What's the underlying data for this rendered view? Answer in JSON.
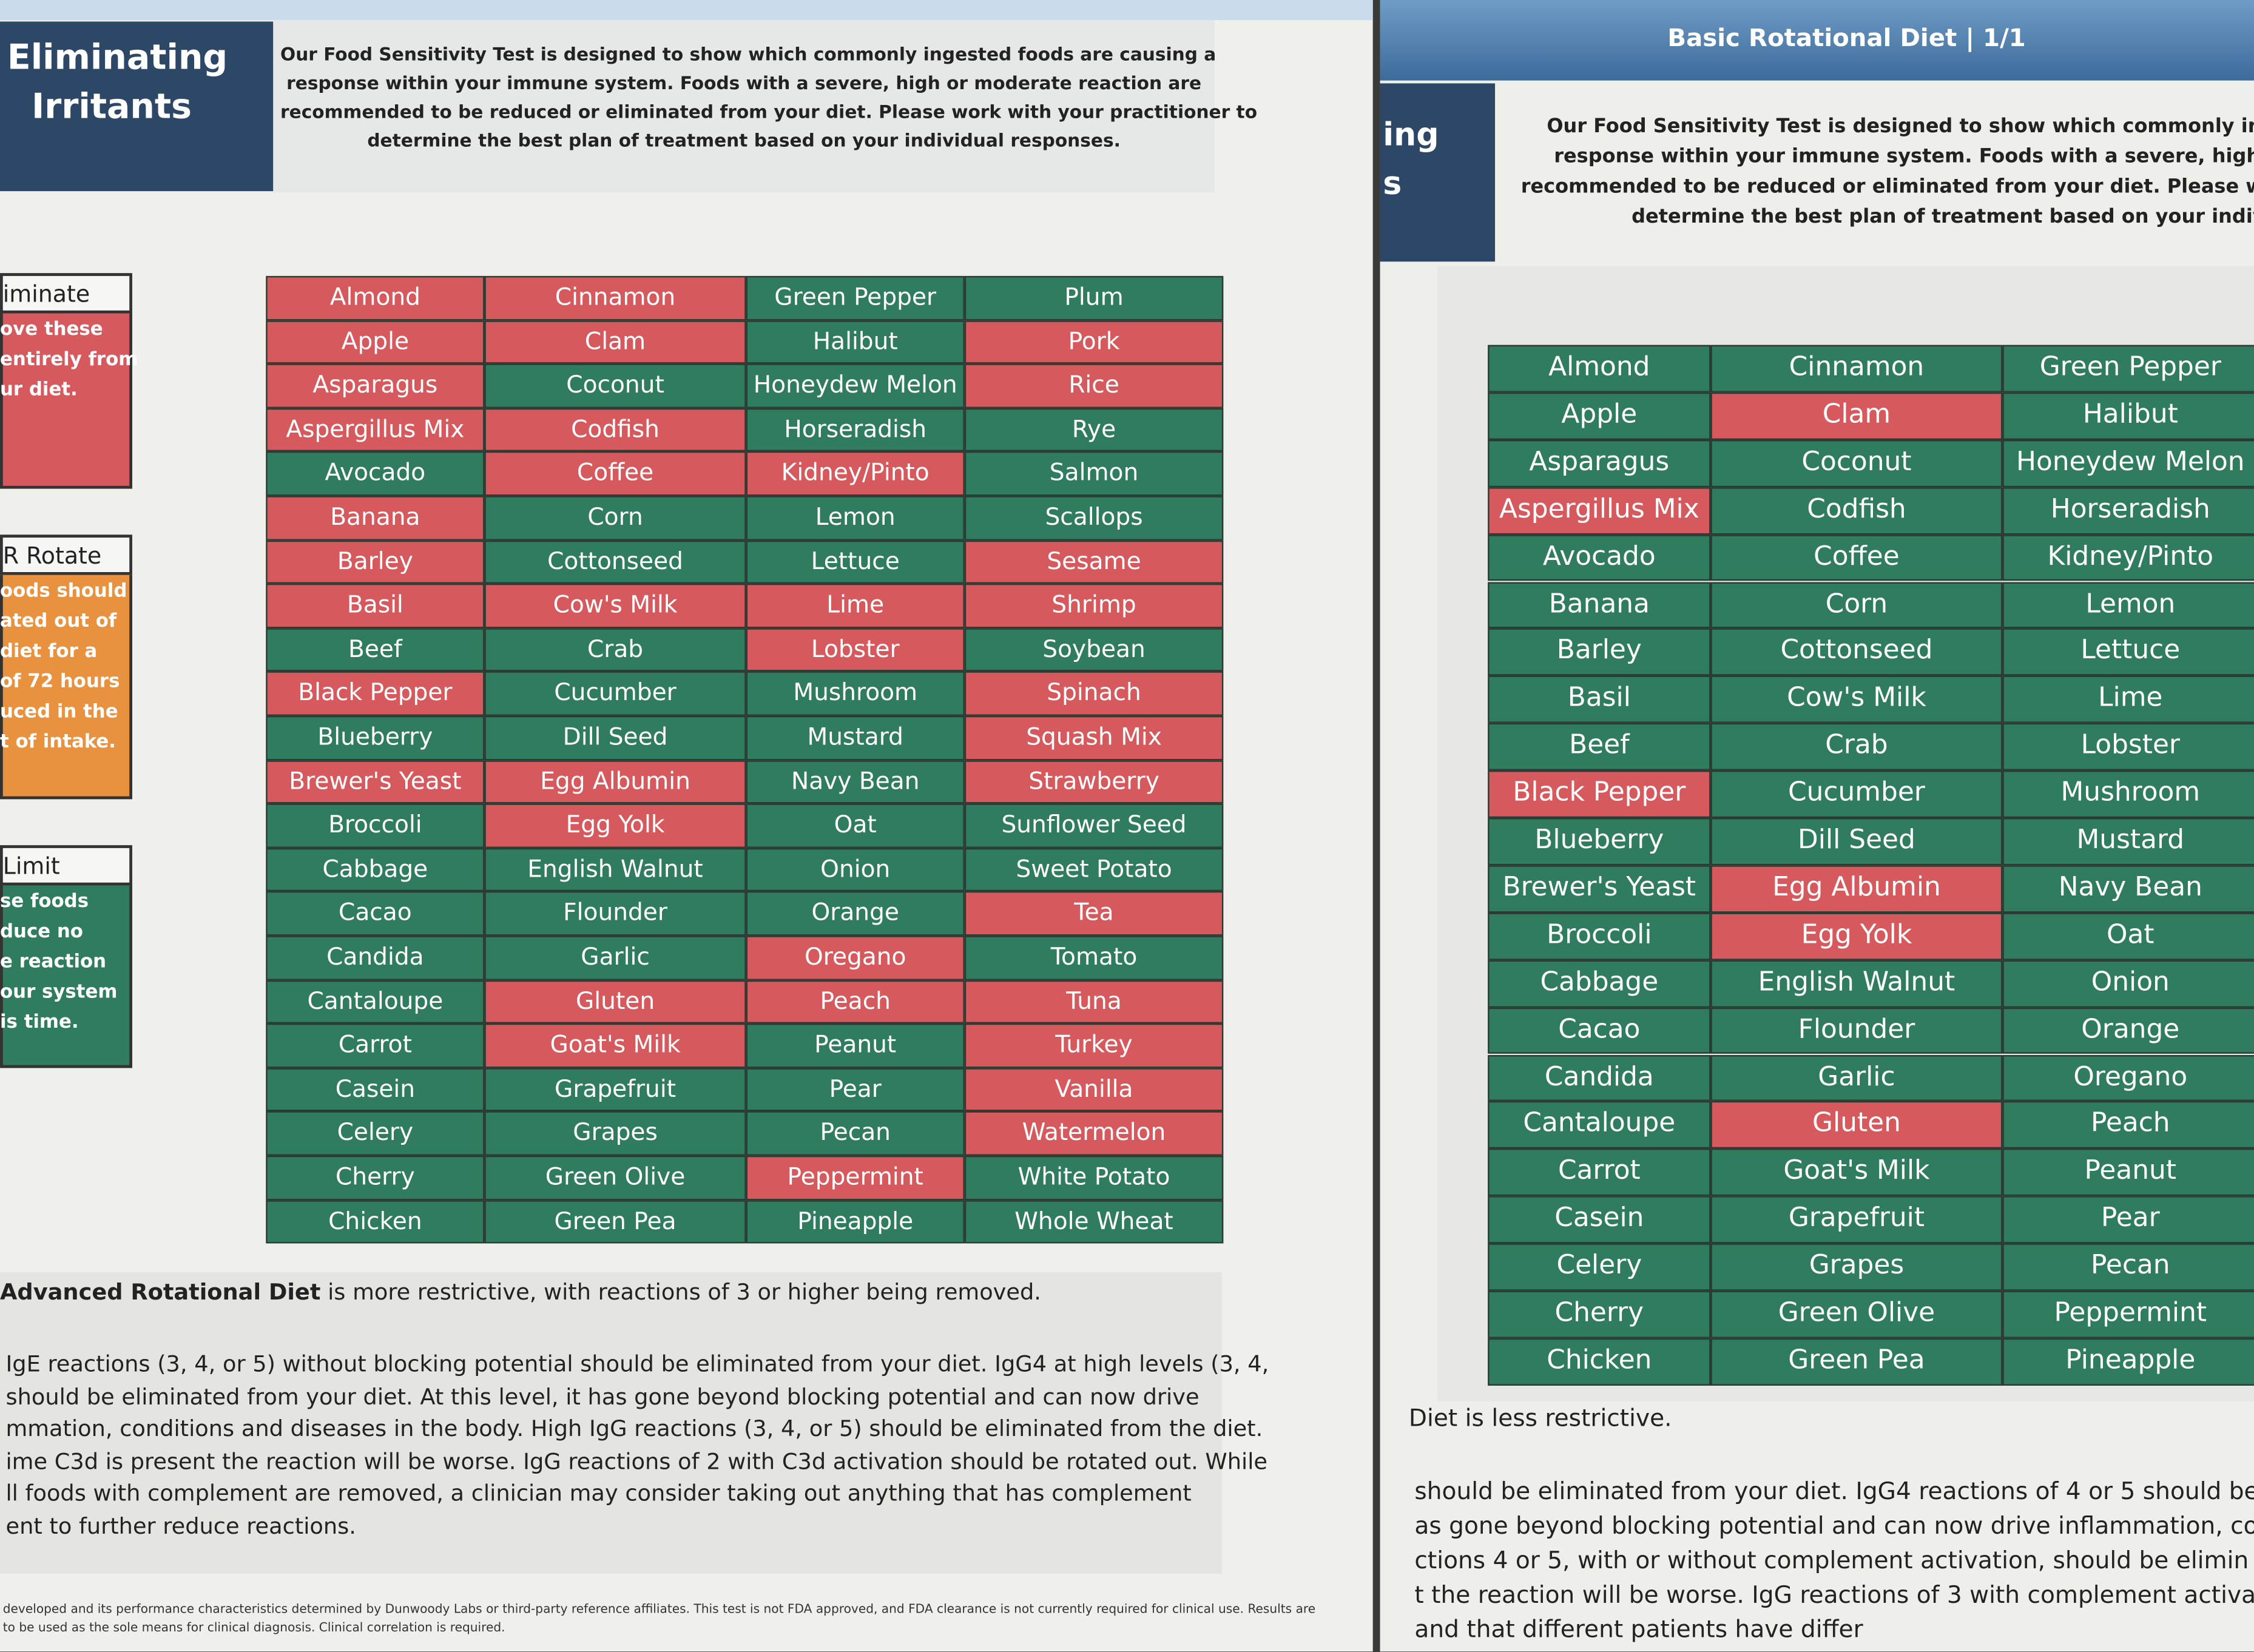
{
  "palette": {
    "red": "#d65a5d",
    "green": "#2f7c5e",
    "orange": "#e8913f"
  },
  "left_sheet": {
    "header": {
      "title_lines": [
        "Eliminating",
        "Irritants"
      ],
      "intro_lines": [
        "Our Food Sensitivity Test is designed to show which commonly ingested foods are causing a",
        "response within your immune system. Foods with a severe, high or moderate reaction are",
        "recommended to be reduced or eliminated from your diet. Please work with your practitioner to",
        "determine the best plan of treatment based on your individual responses."
      ]
    },
    "legend": [
      {
        "heading": "iminate",
        "fill": "red",
        "lines": [
          "ove these",
          "entirely from",
          "ur diet."
        ]
      },
      {
        "heading": "R Rotate",
        "fill": "orange",
        "lines": [
          "oods should",
          "ated out of",
          "diet for a",
          "of 72 hours",
          "uced in the",
          "t of intake."
        ]
      },
      {
        "heading": "Limit",
        "fill": "green",
        "lines": [
          "se foods",
          "duce no",
          "e reaction",
          "our system",
          "is time."
        ]
      }
    ],
    "table": {
      "columns": [
        {
          "labels": [
            "Almond",
            "Apple",
            "Asparagus",
            "Aspergillus Mix",
            "Avocado",
            "Banana",
            "Barley",
            "Basil",
            "Beef",
            "Black Pepper",
            "Blueberry",
            "Brewer's Yeast",
            "Broccoli",
            "Cabbage",
            "Cacao",
            "Candida",
            "Cantaloupe",
            "Carrot",
            "Casein",
            "Celery",
            "Cherry",
            "Chicken"
          ],
          "fills": [
            "red",
            "red",
            "red",
            "red",
            "green",
            "red",
            "red",
            "red",
            "green",
            "red",
            "green",
            "red",
            "green",
            "green",
            "green",
            "green",
            "green",
            "green",
            "green",
            "green",
            "green",
            "green"
          ]
        },
        {
          "labels": [
            "Cinnamon",
            "Clam",
            "Coconut",
            "Codfish",
            "Coffee",
            "Corn",
            "Cottonseed",
            "Cow's Milk",
            "Crab",
            "Cucumber",
            "Dill Seed",
            "Egg Albumin",
            "Egg Yolk",
            "English Walnut",
            "Flounder",
            "Garlic",
            "Gluten",
            "Goat's Milk",
            "Grapefruit",
            "Grapes",
            "Green Olive",
            "Green Pea"
          ],
          "fills": [
            "red",
            "red",
            "green",
            "red",
            "red",
            "green",
            "green",
            "red",
            "green",
            "green",
            "green",
            "red",
            "red",
            "green",
            "green",
            "green",
            "red",
            "red",
            "green",
            "green",
            "green",
            "green"
          ]
        },
        {
          "labels": [
            "Green Pepper",
            "Halibut",
            "Honeydew Melon",
            "Horseradish",
            "Kidney/Pinto",
            "Lemon",
            "Lettuce",
            "Lime",
            "Lobster",
            "Mushroom",
            "Mustard",
            "Navy Bean",
            "Oat",
            "Onion",
            "Orange",
            "Oregano",
            "Peach",
            "Peanut",
            "Pear",
            "Pecan",
            "Peppermint",
            "Pineapple"
          ],
          "fills": [
            "green",
            "green",
            "green",
            "green",
            "red",
            "green",
            "green",
            "red",
            "red",
            "green",
            "green",
            "green",
            "green",
            "green",
            "green",
            "red",
            "red",
            "green",
            "green",
            "green",
            "red",
            "green"
          ]
        },
        {
          "labels": [
            "Plum",
            "Pork",
            "Rice",
            "Rye",
            "Salmon",
            "Scallops",
            "Sesame",
            "Shrimp",
            "Soybean",
            "Spinach",
            "Squash Mix",
            "Strawberry",
            "Sunflower Seed",
            "Sweet Potato",
            "Tea",
            "Tomato",
            "Tuna",
            "Turkey",
            "Vanilla",
            "Watermelon",
            "White Potato",
            "Whole Wheat"
          ],
          "fills": [
            "green",
            "red",
            "red",
            "green",
            "green",
            "green",
            "red",
            "red",
            "green",
            "red",
            "red",
            "red",
            "green",
            "green",
            "red",
            "green",
            "red",
            "red",
            "red",
            "red",
            "green",
            "green"
          ]
        }
      ]
    },
    "summary": {
      "bold": "Advanced Rotational Diet",
      "rest": " is more restrictive, with reactions of 3 or higher being removed."
    },
    "body_lines": [
      "IgE reactions (3, 4, or 5) without blocking potential should be eliminated from your diet.  IgG4 at high levels (3, 4,",
      "should be eliminated from your diet.  At this level, it has gone beyond blocking potential and can now drive",
      "mmation, conditions and diseases in the body.  High IgG reactions (3, 4, or 5) should be eliminated from the diet.",
      "ime C3d is present the reaction will be worse.  IgG reactions of 2 with C3d activation should be rotated out.  While",
      "ll foods with complement are removed, a clinician may consider taking out anything that has complement",
      "ent to further reduce reactions."
    ],
    "footer_lines": [
      "developed and its performance characteristics determined by Dunwoody Labs or third-party reference affiliates. This test is not FDA approved, and FDA clearance is not currently required for clinical use. Results are",
      "to be used as the sole means for clinical diagnosis. Clinical correlation is required."
    ]
  },
  "right_sheet": {
    "title": "Basic Rotational Diet | 1/1",
    "header_fragments": [
      "ing",
      "s"
    ],
    "intro_lines": [
      "Our Food Sensitivity Test is designed to show which commonly ingeste",
      "response within your immune system. Foods with a severe, high or m",
      "recommended to be reduced or eliminated from your diet. Please work",
      "determine the best plan of treatment based on your individu"
    ],
    "table": {
      "columns": [
        {
          "labels": [
            "Almond",
            "Apple",
            "Asparagus",
            "Aspergillus Mix",
            "Avocado",
            "Banana",
            "Barley",
            "Basil",
            "Beef",
            "Black Pepper",
            "Blueberry",
            "Brewer's Yeast",
            "Broccoli",
            "Cabbage",
            "Cacao",
            "Candida",
            "Cantaloupe",
            "Carrot",
            "Casein",
            "Celery",
            "Cherry",
            "Chicken"
          ],
          "fills": [
            "green",
            "green",
            "green",
            "red",
            "green",
            "green",
            "green",
            "green",
            "green",
            "red",
            "green",
            "green",
            "green",
            "green",
            "green",
            "green",
            "green",
            "green",
            "green",
            "green",
            "green",
            "green"
          ]
        },
        {
          "labels": [
            "Cinnamon",
            "Clam",
            "Coconut",
            "Codfish",
            "Coffee",
            "Corn",
            "Cottonseed",
            "Cow's Milk",
            "Crab",
            "Cucumber",
            "Dill Seed",
            "Egg Albumin",
            "Egg Yolk",
            "English Walnut",
            "Flounder",
            "Garlic",
            "Gluten",
            "Goat's Milk",
            "Grapefruit",
            "Grapes",
            "Green Olive",
            "Green Pea"
          ],
          "fills": [
            "green",
            "red",
            "green",
            "green",
            "green",
            "green",
            "green",
            "green",
            "green",
            "green",
            "green",
            "red",
            "red",
            "green",
            "green",
            "green",
            "red",
            "green",
            "green",
            "green",
            "green",
            "green"
          ]
        },
        {
          "labels": [
            "Green Pepper",
            "Halibut",
            "Honeydew Melon",
            "Horseradish",
            "Kidney/Pinto",
            "Lemon",
            "Lettuce",
            "Lime",
            "Lobster",
            "Mushroom",
            "Mustard",
            "Navy Bean",
            "Oat",
            "Onion",
            "Orange",
            "Oregano",
            "Peach",
            "Peanut",
            "Pear",
            "Pecan",
            "Peppermint",
            "Pineapple"
          ],
          "fills": [
            "green",
            "green",
            "green",
            "green",
            "green",
            "green",
            "green",
            "green",
            "green",
            "green",
            "green",
            "green",
            "green",
            "green",
            "green",
            "green",
            "green",
            "green",
            "green",
            "green",
            "green",
            "green"
          ]
        }
      ]
    },
    "summary": "Diet is less restrictive.",
    "body_lines": [
      "should be eliminated from your diet. IgG4 reactions of 4 or 5 should be",
      "as gone beyond blocking potential and can now drive inflammation, cor",
      "ctions 4 or 5, with or without complement activation, should be elimin",
      "t the reaction will be worse.  IgG reactions of 3 with complement activa",
      "and that different patients have differ"
    ]
  }
}
